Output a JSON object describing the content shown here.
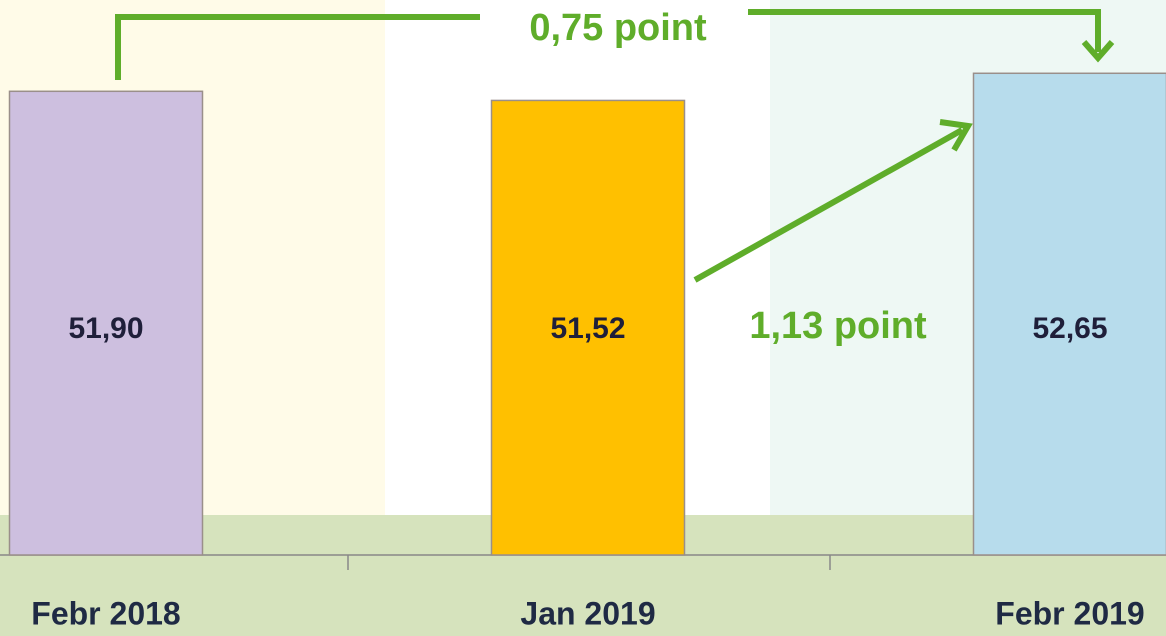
{
  "chart_data": {
    "type": "bar",
    "categories": [
      "Febr 2018",
      "Jan 2019",
      "Febr 2019"
    ],
    "values": [
      51.9,
      51.52,
      52.65
    ],
    "value_labels": [
      "51,90",
      "51,52",
      "52,65"
    ],
    "colors": [
      "#cdbfdf",
      "#ffc000",
      "#b7dcec"
    ],
    "ylim": [
      32.6,
      55.7
    ],
    "annotations": [
      "0,75 point",
      "1,13 point"
    ]
  }
}
